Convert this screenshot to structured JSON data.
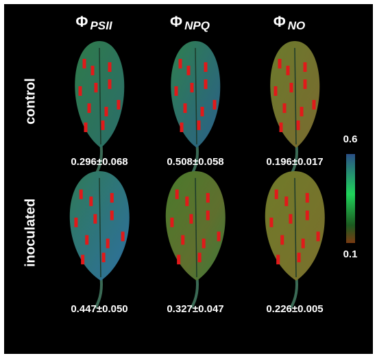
{
  "columns": [
    {
      "symbol": "Φ",
      "subscript": "PSII"
    },
    {
      "symbol": "Φ",
      "subscript": "NPQ"
    },
    {
      "symbol": "Φ",
      "subscript": "NO"
    }
  ],
  "rows": [
    {
      "label": "control",
      "values": [
        "0.296±0.068",
        "0.508±0.058",
        "0.196±0.017"
      ]
    },
    {
      "label": "inoculated",
      "values": [
        "0.447±0.050",
        "0.327±0.047",
        "0.226±0.005"
      ]
    }
  ],
  "colorbar": {
    "max": "0.6",
    "min": "0.1"
  }
}
